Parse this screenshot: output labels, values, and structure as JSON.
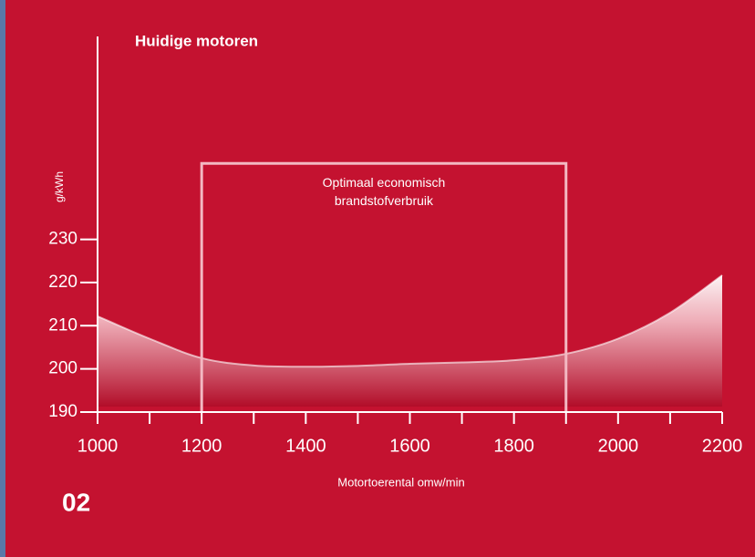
{
  "chart_data": {
    "type": "area",
    "title": "Huidige motoren",
    "y_label": "g/kWh",
    "x_label": "Motortoerental omw/min",
    "figure_number": "02",
    "x": [
      1000,
      1100,
      1200,
      1300,
      1400,
      1500,
      1600,
      1700,
      1800,
      1900,
      2000,
      2100,
      2200
    ],
    "values": [
      212.2,
      207,
      202.5,
      200.8,
      200.5,
      200.7,
      201.2,
      201.5,
      202,
      203.5,
      207,
      213,
      221.7
    ],
    "color": "#ffffff",
    "xlim": [
      1000,
      2200
    ],
    "xticks": [
      1000,
      1200,
      1400,
      1600,
      1800,
      2000,
      2200
    ],
    "xminorticks": [
      1100,
      1300,
      1500,
      1700,
      1900,
      2100
    ],
    "ylim": [
      190,
      277
    ],
    "yticks": [
      190,
      200,
      210,
      220,
      230
    ],
    "optimal_range": {
      "x": [
        1200,
        1900
      ],
      "top": 247.6,
      "label_lines": [
        "Optimaal economisch",
        "brandstofverbruik"
      ]
    }
  }
}
